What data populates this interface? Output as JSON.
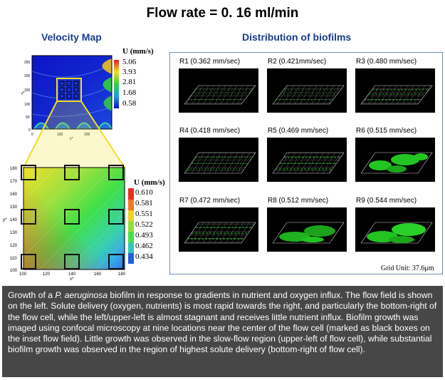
{
  "title": "Flow rate = 0. 16 ml/min",
  "velocity_map": {
    "heading": "Velocity Map",
    "top_plot": {
      "y_ticks": [
        "250",
        "200",
        "150",
        "100",
        "50",
        "0"
      ],
      "x_ticks": [
        "0",
        "100",
        "200"
      ],
      "x_label": "x*",
      "y_label": "y*",
      "legend_title": "U (mm/s)",
      "legend_values": [
        "5.06",
        "3.93",
        "2.81",
        "1.68",
        "0.58"
      ],
      "colors": {
        "low": "#1010c0",
        "high": "#e02020"
      }
    },
    "zoom_plot": {
      "y_ticks": [
        "180",
        "170",
        "160",
        "150",
        "140",
        "130",
        "120",
        "110",
        "100"
      ],
      "x_ticks": [
        "100",
        "120",
        "140",
        "160",
        "180"
      ],
      "x_label": "x*",
      "y_label": "y*",
      "legend_title": "U (mm/s)",
      "legend_values": [
        "0.610",
        "0.581",
        "0.551",
        "0.522",
        "0.493",
        "0.462",
        "0.434"
      ],
      "colors": {
        "low": "#1a1ad8",
        "mid": "#40e040",
        "high": "#e83020"
      }
    },
    "zoom_connector_color": "#f0e020"
  },
  "biofilm": {
    "heading": "Distribution of biofilms",
    "cells": [
      {
        "label": "R1 (0.362 mm/sec)"
      },
      {
        "label": "R2 (0.421mm/sec)"
      },
      {
        "label": "R3 (0.480 mm/sec)"
      },
      {
        "label": "R4 (0.418 mm/sec)"
      },
      {
        "label": "R5 (0.469 mm/sec)"
      },
      {
        "label": "R6 (0.515 mm/sec)"
      },
      {
        "label": "R7 (0.472 mm/sec)"
      },
      {
        "label": "R8 (0.512 mm/sec)"
      },
      {
        "label": "R9 (0.544 mm/sec)"
      }
    ],
    "grid_unit": "Grid Unit: 37.6μm",
    "colors": {
      "panel_border": "#6f8fb5",
      "biofilm": "#22c422"
    }
  },
  "caption": {
    "before_italic": "Growth of a ",
    "italic": "P. aeruginosa",
    "after_italic": " biofilm in response to gradients in nutrient and oxygen influx. The flow field is shown on the left. Solute delivery (oxygen, nutrients) is most rapid towards the right, and particularly the bottom-right of the flow cell, while the left/upper-left is almost stagnant and receives little nutrient influx. Biofilm growth was imaged using confocal microscopy at nine locations near the center of the flow cell (marked as black boxes on the inset flow field). Little growth was observed in the slow-flow region (upper-left of flow cell), while substantial biofilm growth was observed in the region of highest solute delivery (bottom-right of flow cell)."
  }
}
